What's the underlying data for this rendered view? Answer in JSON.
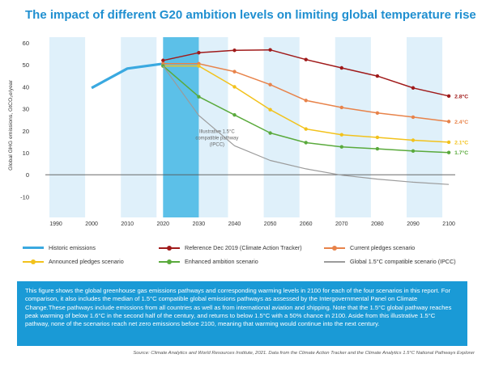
{
  "header": {
    "title": "The impact of different G20 ambition levels on limiting global temperature rise"
  },
  "chart_data": {
    "type": "line",
    "title": "The impact of different G20 ambition levels on limiting global temperature rise",
    "xlabel": "",
    "ylabel": "Global GHG emissions, GtCO₂e/year",
    "ylim": [
      -15,
      60
    ],
    "xlim": [
      1985,
      2105
    ],
    "x_ticks": [
      1990,
      2000,
      2010,
      2020,
      2030,
      2040,
      2050,
      2060,
      2070,
      2080,
      2090,
      2100
    ],
    "y_ticks": [
      -10,
      0,
      10,
      20,
      30,
      40,
      50,
      60
    ],
    "grid": false,
    "legend_position": "bottom",
    "series": [
      {
        "name": "Historic emissions",
        "color": "#3aa9e0",
        "marker": "none",
        "x": [
          2000,
          2010,
          2020
        ],
        "y": [
          39.5,
          48.3,
          50.5
        ]
      },
      {
        "name": "Reference Dec 2019 (Climate Action Tracker)",
        "color": "#a01a1a",
        "marker": "dot",
        "end_label": "2.8°C",
        "x": [
          2020,
          2030,
          2040,
          2050,
          2060,
          2070,
          2080,
          2090,
          2100
        ],
        "y": [
          52,
          55.5,
          56.6,
          56.8,
          52.4,
          48.6,
          44.9,
          39.5,
          35.8
        ]
      },
      {
        "name": "Current pledges scenario",
        "color": "#e8834a",
        "marker": "dot",
        "end_label": "2.4°C",
        "x": [
          2020,
          2030,
          2040,
          2050,
          2060,
          2070,
          2080,
          2090,
          2100
        ],
        "y": [
          50.5,
          50.5,
          46.9,
          41,
          33.8,
          30.6,
          28.1,
          26.2,
          24.2
        ]
      },
      {
        "name": "Announced pledges scenario",
        "color": "#f2c21c",
        "marker": "dot",
        "end_label": "2.1°C",
        "x": [
          2020,
          2030,
          2040,
          2050,
          2060,
          2070,
          2080,
          2090,
          2100
        ],
        "y": [
          49.5,
          49.5,
          40,
          29.6,
          20.8,
          18.2,
          17,
          15.7,
          14.8
        ]
      },
      {
        "name": "Enhanced ambition scenario",
        "color": "#5aaa3c",
        "marker": "dot",
        "end_label": "1.7°C",
        "x": [
          2020,
          2030,
          2040,
          2050,
          2060,
          2070,
          2080,
          2090,
          2100
        ],
        "y": [
          49.5,
          35.5,
          27.2,
          19,
          14.6,
          12.7,
          11.8,
          10.8,
          10.1
        ]
      },
      {
        "name": "Global 1.5°C compatible scenario (IPCC)",
        "color": "#9b9b9b",
        "marker": "none",
        "x": [
          2020,
          2030,
          2040,
          2050,
          2060,
          2070,
          2080,
          2090,
          2100
        ],
        "y": [
          49.5,
          27,
          13.2,
          6.5,
          2.7,
          -0.2,
          -2,
          -3.4,
          -4.4
        ]
      }
    ],
    "annotations": [
      {
        "text": "Illustrative 1.5°C compatible pathway (IPCC)",
        "x": 2036,
        "y": 19
      }
    ]
  },
  "legend": {
    "items": [
      {
        "label": "Historic emissions"
      },
      {
        "label": "Reference Dec 2019 (Climate Action Tracker)"
      },
      {
        "label": "Current pledges scenario"
      },
      {
        "label": "Announced pledges scenario"
      },
      {
        "label": "Enhanced ambition scenario"
      },
      {
        "label": "Global 1.5°C compatible scenario (IPCC)"
      }
    ]
  },
  "infobox": {
    "text": "This figure shows the global greenhouse gas emissions pathways and corresponding warming levels in 2100 for each of the four scenarios in this report. For comparison, it also includes the median of 1.5°C compatible global emissions pathways as assessed by the Intergovernmental Panel on Climate Change.These pathways include emissions from all countries as well as from international aviation and shipping. Note that the 1.5°C global pathway reaches peak warming of below 1.6°C in the second half of the century, and returns to below 1.5°C with a 50% chance in 2100. Aside from this illustrative 1.5°C pathway, none of the scenarios reach net zero emissions before 2100, meaning that warming would continue into the next century."
  },
  "source": {
    "text": "Source: Climate Analytics and World Resources Institute, 2021. Data from the Climate Action Tracker and the Climate Analytics 1.5°C National Pathways Explorer"
  },
  "colors": {
    "title": "#1f8fd0",
    "band_light": "#dff0fa",
    "band_highlight": "#5cc0e8",
    "infobox": "#1a9ad6"
  }
}
